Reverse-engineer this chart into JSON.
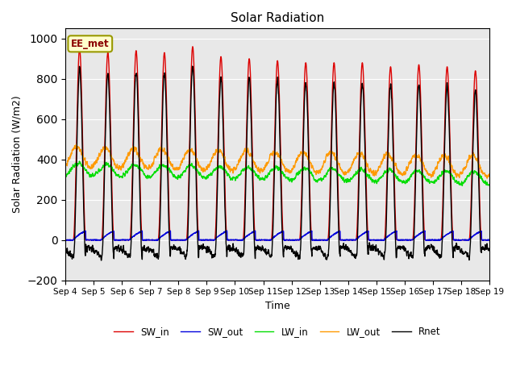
{
  "title": "Solar Radiation",
  "xlabel": "Time",
  "ylabel": "Solar Radiation (W/m2)",
  "ylim": [
    -200,
    1050
  ],
  "yticks": [
    -200,
    0,
    200,
    400,
    600,
    800,
    1000
  ],
  "start_day": 4,
  "end_day": 19,
  "annotation": "EE_met",
  "legend": [
    "SW_in",
    "SW_out",
    "LW_in",
    "LW_out",
    "Rnet"
  ],
  "colors": {
    "SW_in": "#dd0000",
    "SW_out": "#0000dd",
    "LW_in": "#00dd00",
    "LW_out": "#ff9900",
    "Rnet": "#000000"
  },
  "background_color": "#e8e8e8",
  "fig_background": "#ffffff",
  "n_points_per_day": 144,
  "peaks": [
    950,
    930,
    940,
    930,
    960,
    910,
    900,
    890,
    880,
    880,
    880,
    860,
    870,
    860,
    840
  ],
  "lw_in_base": 350,
  "lw_out_base": 410,
  "lw_in_amp": 30,
  "lw_out_amp": 50,
  "sw_out_max": 60,
  "night_rnet": -90
}
